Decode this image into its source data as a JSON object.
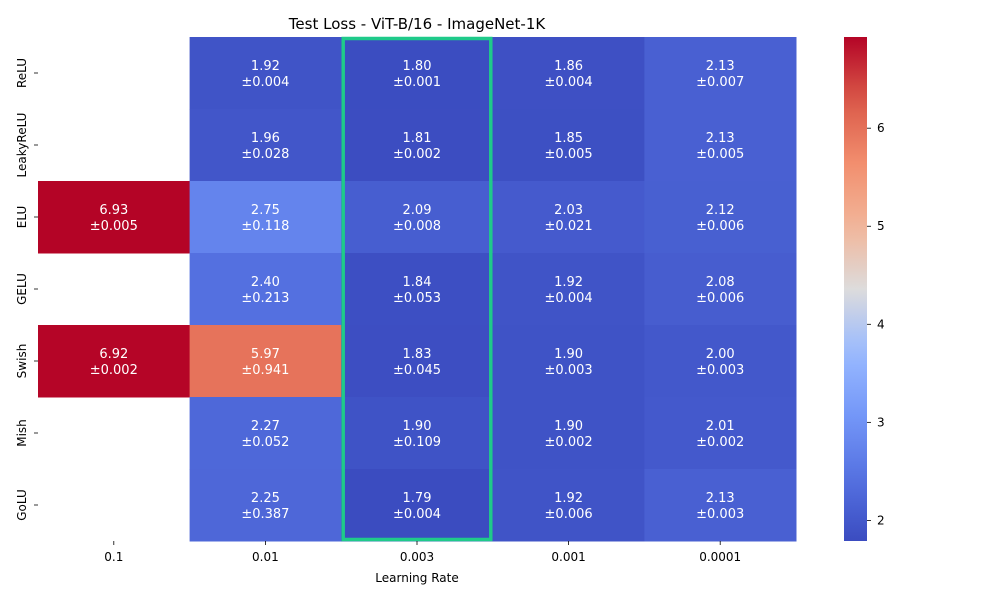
{
  "chart_data": {
    "type": "heatmap",
    "title": "Test Loss - ViT-B/16 - ImageNet-1K",
    "xlabel": "Learning Rate",
    "ylabel": "",
    "x_categories": [
      "0.1",
      "0.01",
      "0.003",
      "0.001",
      "0.0001"
    ],
    "y_categories": [
      "ReLU",
      "LeakyReLU",
      "ELU",
      "GELU",
      "Swish",
      "Mish",
      "GoLU"
    ],
    "values": [
      [
        null,
        1.92,
        1.8,
        1.86,
        2.13
      ],
      [
        null,
        1.96,
        1.81,
        1.85,
        2.13
      ],
      [
        6.93,
        2.75,
        2.09,
        2.03,
        2.12
      ],
      [
        null,
        2.4,
        1.84,
        1.92,
        2.08
      ],
      [
        6.92,
        5.97,
        1.83,
        1.9,
        2.0
      ],
      [
        null,
        2.27,
        1.9,
        1.9,
        2.01
      ],
      [
        null,
        2.25,
        1.79,
        1.92,
        2.13
      ]
    ],
    "annotations": [
      [
        null,
        "1.92\n±0.004",
        "1.80\n±0.001",
        "1.86\n±0.004",
        "2.13\n±0.007"
      ],
      [
        null,
        "1.96\n±0.028",
        "1.81\n±0.002",
        "1.85\n±0.005",
        "2.13\n±0.005"
      ],
      [
        "6.93\n±0.005",
        "2.75\n±0.118",
        "2.09\n±0.008",
        "2.03\n±0.021",
        "2.12\n±0.006"
      ],
      [
        null,
        "2.40\n±0.213",
        "1.84\n±0.053",
        "1.92\n±0.004",
        "2.08\n±0.006"
      ],
      [
        "6.92\n±0.002",
        "5.97\n±0.941",
        "1.83\n±0.045",
        "1.90\n±0.003",
        "2.00\n±0.003"
      ],
      [
        null,
        "2.27\n±0.052",
        "1.90\n±0.109",
        "1.90\n±0.002",
        "2.01\n±0.002"
      ],
      [
        null,
        "2.25\n±0.387",
        "1.79\n±0.004",
        "1.92\n±0.006",
        "2.13\n±0.003"
      ]
    ],
    "colormap": "coolwarm",
    "vmin": 1.79,
    "vmax": 6.93,
    "colorbar_ticks": [
      2,
      3,
      4,
      5,
      6
    ],
    "highlighted_column": "0.003",
    "highlight_color": "#1fca8a"
  }
}
